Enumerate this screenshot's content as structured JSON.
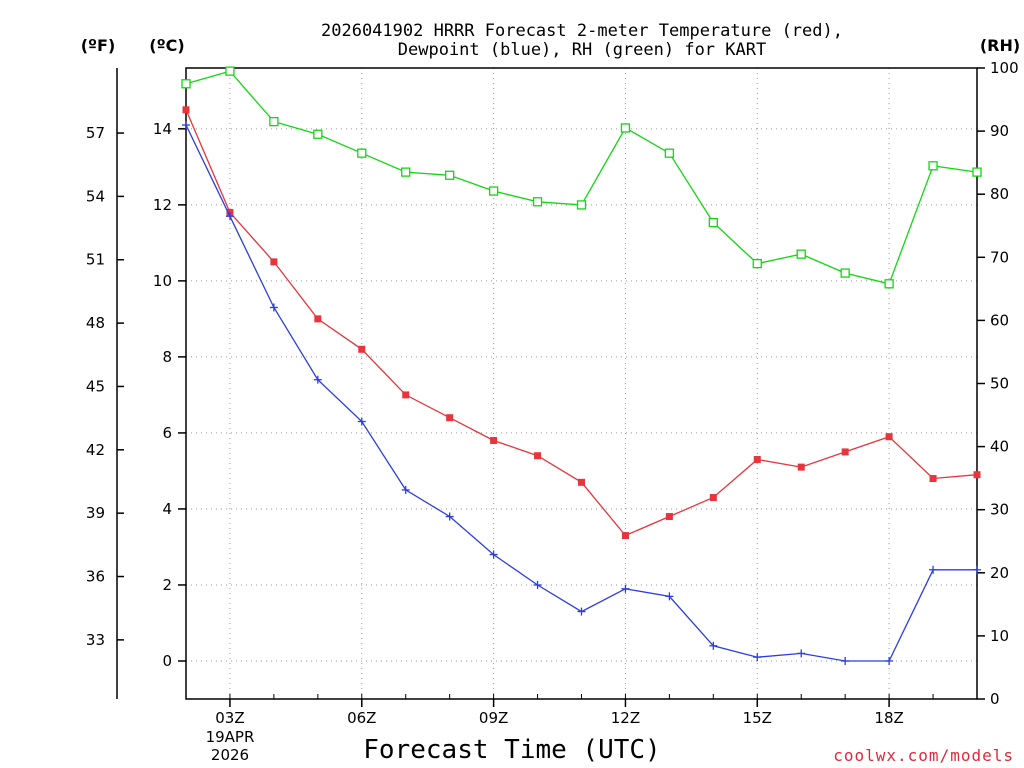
{
  "chart_data": {
    "type": "line",
    "title_line1": "2026041902 HRRR Forecast 2-meter Temperature (red),",
    "title_line2": "Dewpoint (blue), RH (green) for KART",
    "xlabel": "Forecast Time (UTC)",
    "x_tick_labels": [
      "03Z",
      "06Z",
      "09Z",
      "12Z",
      "15Z",
      "18Z"
    ],
    "x_tick_hours": [
      3,
      6,
      9,
      12,
      15,
      18
    ],
    "date_label_line1": "19APR",
    "date_label_line2": "2026",
    "x_range_hours": [
      2,
      20
    ],
    "unit_fahrenheit": "(ºF)",
    "unit_celsius": "(ºC)",
    "unit_rh": "(RH)",
    "fahrenheit_ticks": [
      "33",
      "36",
      "39",
      "42",
      "45",
      "48",
      "51",
      "54",
      "57"
    ],
    "celsius_ticks": [
      "0",
      "2",
      "4",
      "6",
      "8",
      "10",
      "12",
      "14"
    ],
    "celsius_range": [
      -1,
      15.6
    ],
    "rh_ticks": [
      "0",
      "10",
      "20",
      "30",
      "40",
      "50",
      "60",
      "70",
      "80",
      "90",
      "100"
    ],
    "rh_range": [
      0,
      100
    ],
    "hours": [
      2,
      3,
      4,
      5,
      6,
      7,
      8,
      9,
      10,
      11,
      12,
      13,
      14,
      15,
      16,
      17,
      18,
      19,
      20
    ],
    "series": [
      {
        "name": "Temperature",
        "units": "C",
        "color": "#e8343c",
        "marker": "filled-square",
        "values": [
          14.5,
          11.8,
          10.5,
          9.0,
          8.2,
          7.0,
          6.4,
          5.8,
          5.4,
          4.7,
          3.3,
          3.8,
          4.3,
          5.3,
          5.1,
          5.5,
          5.9,
          4.8,
          4.9
        ]
      },
      {
        "name": "Dewpoint",
        "units": "C",
        "color": "#2c3ee0",
        "marker": "plus",
        "values": [
          14.1,
          11.7,
          9.3,
          7.4,
          6.3,
          4.5,
          3.8,
          2.8,
          2.0,
          1.3,
          1.9,
          1.7,
          0.4,
          0.1,
          0.2,
          0.0,
          0.0,
          2.4,
          2.4
        ]
      },
      {
        "name": "RH",
        "units": "%",
        "color": "#10d810",
        "marker": "open-square",
        "values": [
          97.5,
          99.5,
          91.5,
          89.5,
          86.5,
          83.5,
          83.0,
          80.5,
          78.8,
          78.3,
          90.5,
          86.5,
          75.5,
          69.0,
          70.5,
          67.5,
          65.8,
          84.5,
          83.5
        ]
      }
    ]
  },
  "credit": "coolwx.com/models"
}
